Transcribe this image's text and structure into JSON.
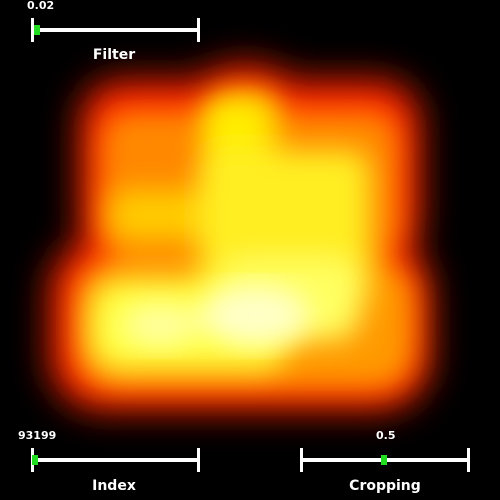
{
  "viewer": {
    "background": "#000000",
    "colormap": [
      "#ff0000",
      "#ff7a00",
      "#ffff00",
      "#ffffff"
    ],
    "render_icon": "volume-render"
  },
  "sliders": {
    "filter": {
      "label": "Filter",
      "value": "0.02",
      "position": 0.02,
      "handle_color": "#22dd22"
    },
    "index": {
      "label": "Index",
      "value": "93199",
      "position": 0.0,
      "handle_color": "#22dd22"
    },
    "cropping": {
      "label": "Cropping",
      "value": "0.5",
      "position": 0.5,
      "handle_color": "#22dd22"
    }
  }
}
